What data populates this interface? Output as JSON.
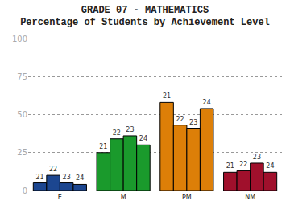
{
  "chart_data": {
    "type": "bar",
    "title": "GRADE 07 - MATHEMATICS",
    "subtitle": "Percentage of Students by Achievement Level",
    "categories": [
      "E",
      "M",
      "PM",
      "NM"
    ],
    "colors": [
      "#1c4690",
      "#1a9a2c",
      "#dd7f08",
      "#a0102c"
    ],
    "series": [
      {
        "name": "21",
        "values": [
          5,
          25,
          58,
          12
        ]
      },
      {
        "name": "22",
        "values": [
          10,
          34,
          43,
          13
        ]
      },
      {
        "name": "23",
        "values": [
          5,
          36,
          41,
          18
        ]
      },
      {
        "name": "24",
        "values": [
          4,
          30,
          54,
          12
        ]
      }
    ],
    "ylim": [
      0,
      100
    ],
    "yticks": [
      0,
      25,
      50,
      75,
      100
    ],
    "grid": true
  }
}
